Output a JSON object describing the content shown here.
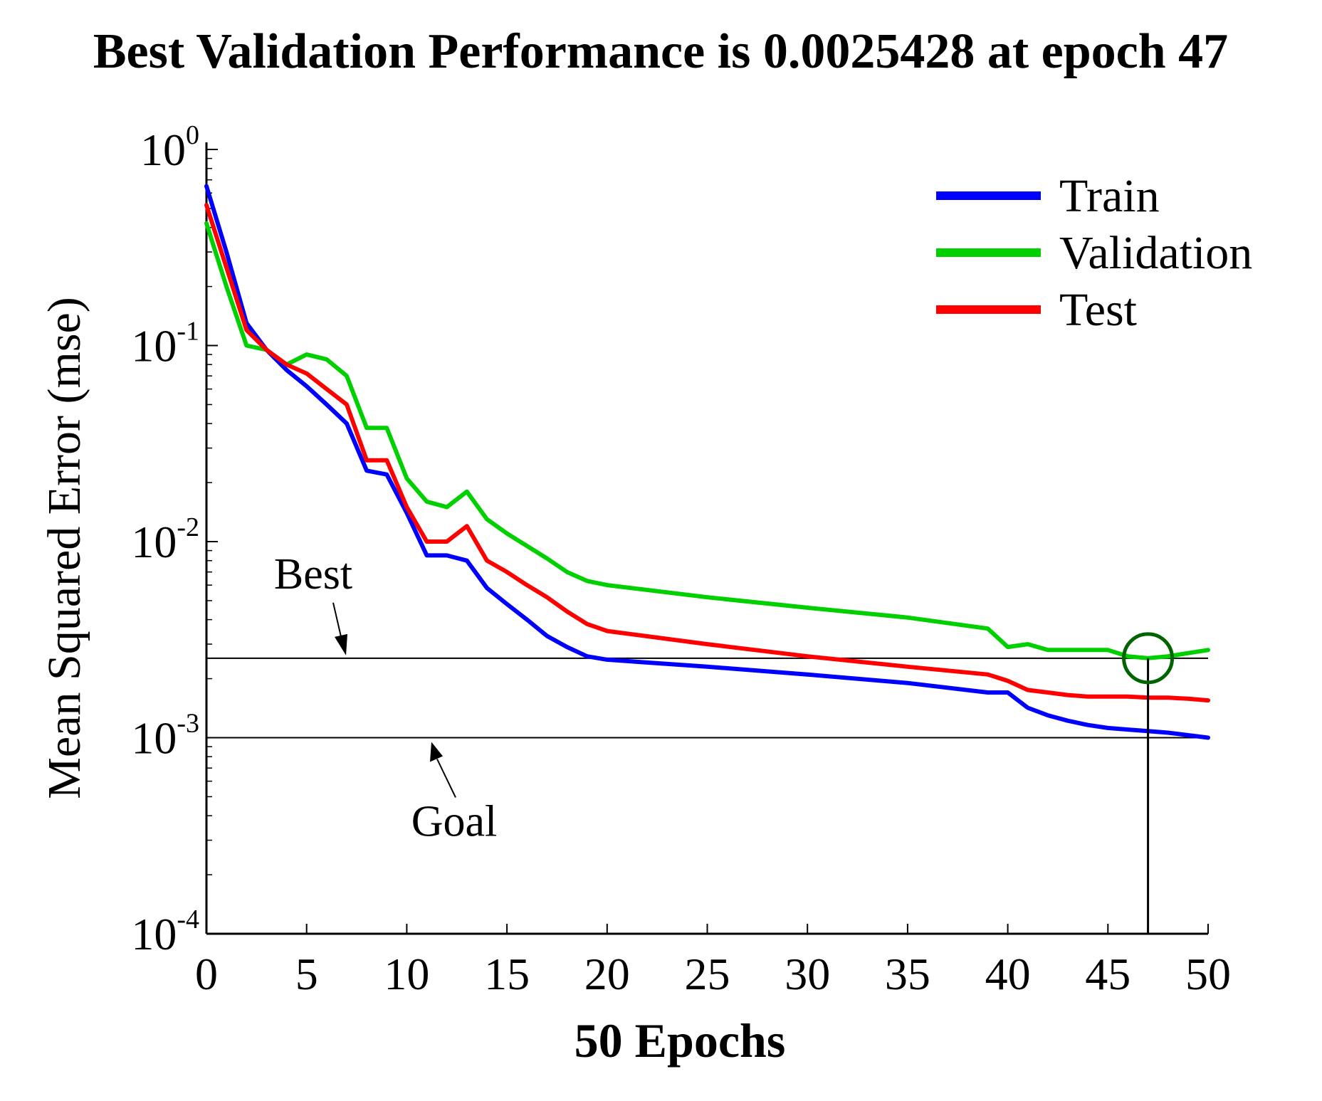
{
  "chart_data": {
    "type": "line",
    "title": "Best Validation Performance is 0.0025428 at epoch 47",
    "xlabel": "50 Epochs",
    "ylabel": "Mean Squared Error (mse)",
    "yscale": "log",
    "xlim": [
      0,
      50
    ],
    "ylim": [
      0.0001,
      1
    ],
    "x_ticks": [
      0,
      5,
      10,
      15,
      20,
      25,
      30,
      35,
      40,
      45,
      50
    ],
    "y_ticks": [
      {
        "value": 1,
        "base": "10",
        "exp": "0"
      },
      {
        "value": 0.1,
        "base": "10",
        "exp": "-1"
      },
      {
        "value": 0.01,
        "base": "10",
        "exp": "-2"
      },
      {
        "value": 0.001,
        "base": "10",
        "exp": "-3"
      },
      {
        "value": 0.0001,
        "base": "10",
        "exp": "-4"
      }
    ],
    "legend_position": "top-right",
    "series": [
      {
        "name": "Train",
        "color": "#0000ff",
        "x": [
          0,
          1,
          2,
          3,
          4,
          5,
          6,
          7,
          8,
          9,
          10,
          11,
          12,
          13,
          14,
          15,
          16,
          17,
          18,
          19,
          20,
          25,
          30,
          35,
          39,
          40,
          41,
          42,
          43,
          44,
          45,
          46,
          47,
          48,
          49,
          50
        ],
        "y": [
          0.65,
          0.3,
          0.13,
          0.095,
          0.075,
          0.062,
          0.05,
          0.04,
          0.023,
          0.022,
          0.014,
          0.0085,
          0.0085,
          0.008,
          0.0058,
          0.0048,
          0.004,
          0.0033,
          0.0029,
          0.0026,
          0.0025,
          0.0023,
          0.0021,
          0.0019,
          0.0017,
          0.0017,
          0.00142,
          0.0013,
          0.00122,
          0.00116,
          0.00112,
          0.0011,
          0.00108,
          0.00106,
          0.00103,
          0.001
        ]
      },
      {
        "name": "Validation",
        "color": "#00d000",
        "x": [
          0,
          1,
          2,
          3,
          4,
          5,
          6,
          7,
          8,
          9,
          10,
          11,
          12,
          13,
          14,
          15,
          16,
          17,
          18,
          19,
          20,
          25,
          30,
          35,
          39,
          40,
          41,
          42,
          43,
          44,
          45,
          46,
          47,
          48,
          49,
          50
        ],
        "y": [
          0.42,
          0.2,
          0.1,
          0.095,
          0.08,
          0.09,
          0.085,
          0.07,
          0.038,
          0.038,
          0.021,
          0.016,
          0.015,
          0.018,
          0.013,
          0.011,
          0.0095,
          0.0082,
          0.007,
          0.0063,
          0.006,
          0.0052,
          0.0046,
          0.0041,
          0.0036,
          0.0029,
          0.003,
          0.0028,
          0.0028,
          0.0028,
          0.0028,
          0.0026,
          0.0025428,
          0.0026,
          0.0027,
          0.0028
        ]
      },
      {
        "name": "Test",
        "color": "#ff0000",
        "x": [
          0,
          1,
          2,
          3,
          4,
          5,
          6,
          7,
          8,
          9,
          10,
          11,
          12,
          13,
          14,
          15,
          16,
          17,
          18,
          19,
          20,
          25,
          30,
          35,
          39,
          40,
          41,
          42,
          43,
          44,
          45,
          46,
          47,
          48,
          49,
          50
        ],
        "y": [
          0.52,
          0.25,
          0.12,
          0.095,
          0.08,
          0.072,
          0.06,
          0.05,
          0.026,
          0.026,
          0.015,
          0.01,
          0.01,
          0.012,
          0.008,
          0.007,
          0.006,
          0.0052,
          0.0044,
          0.0038,
          0.0035,
          0.003,
          0.0026,
          0.0023,
          0.0021,
          0.00195,
          0.00175,
          0.0017,
          0.00165,
          0.00162,
          0.00162,
          0.00162,
          0.0016,
          0.0016,
          0.00158,
          0.00155
        ]
      }
    ],
    "reference_lines": [
      {
        "name": "Best",
        "label": "Best",
        "y": 0.0025428
      },
      {
        "name": "Goal",
        "label": "Goal",
        "y": 0.001
      }
    ],
    "best_point": {
      "epoch": 47,
      "value": 0.0025428
    }
  },
  "colors": {
    "axis": "#000000",
    "circle": "#006400"
  }
}
